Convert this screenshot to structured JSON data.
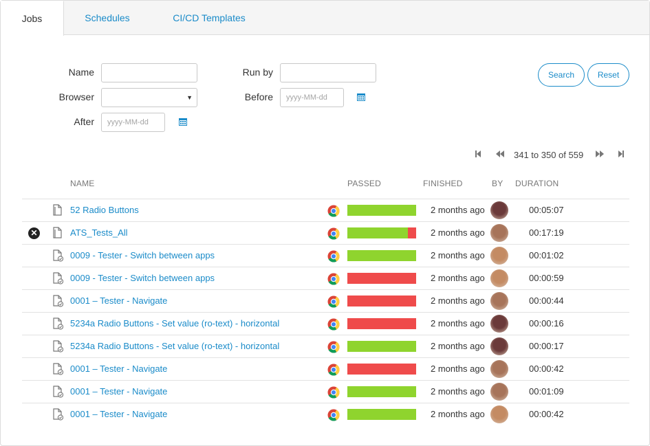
{
  "tabs": [
    {
      "label": "Jobs",
      "active": true
    },
    {
      "label": "Schedules",
      "active": false
    },
    {
      "label": "CI/CD Templates",
      "active": false
    }
  ],
  "filters": {
    "name_label": "Name",
    "name_value": "",
    "browser_label": "Browser",
    "browser_value": "",
    "after_label": "After",
    "after_placeholder": "yyyy-MM-dd",
    "runby_label": "Run by",
    "runby_value": "",
    "before_label": "Before",
    "before_placeholder": "yyyy-MM-dd"
  },
  "buttons": {
    "search": "Search",
    "reset": "Reset"
  },
  "pagination": {
    "range": "341 to 350 of 559"
  },
  "columns": {
    "name": "NAME",
    "passed": "PASSED",
    "finished": "FINISHED",
    "by": "BY",
    "duration": "DURATION"
  },
  "colors": {
    "accent": "#1a8bc9",
    "pass": "#8fd42e",
    "fail": "#ef4b4b"
  },
  "jobs": [
    {
      "name": "52 Radio Buttons",
      "status_icon": "",
      "doc_icon": "document-icon",
      "browser_icon": "chrome-icon",
      "passed_fraction": 1.0,
      "finished": "2 months ago",
      "duration": "00:05:07",
      "avatar_color": "#6b3a3a"
    },
    {
      "name": "ATS_Tests_All",
      "status_icon": "error-icon",
      "doc_icon": "document-icon",
      "browser_icon": "chrome-icon",
      "passed_fraction": 0.88,
      "finished": "2 months ago",
      "duration": "00:17:19",
      "avatar_color": "#a7745a"
    },
    {
      "name": "0009 - Tester - Switch between apps",
      "status_icon": "",
      "doc_icon": "document-check-icon",
      "browser_icon": "chrome-icon",
      "passed_fraction": 1.0,
      "finished": "2 months ago",
      "duration": "00:01:02",
      "avatar_color": "#c48b63"
    },
    {
      "name": "0009 - Tester - Switch between apps",
      "status_icon": "",
      "doc_icon": "document-check-icon",
      "browser_icon": "chrome-icon",
      "passed_fraction": 0.0,
      "finished": "2 months ago",
      "duration": "00:00:59",
      "avatar_color": "#c48b63"
    },
    {
      "name": "0001 – Tester - Navigate",
      "status_icon": "",
      "doc_icon": "document-check-icon",
      "browser_icon": "chrome-icon",
      "passed_fraction": 0.0,
      "finished": "2 months ago",
      "duration": "00:00:44",
      "avatar_color": "#a7745a"
    },
    {
      "name": "5234a Radio Buttons - Set value (ro-text) - horizontal",
      "status_icon": "",
      "doc_icon": "document-check-icon",
      "browser_icon": "chrome-icon",
      "passed_fraction": 0.0,
      "finished": "2 months ago",
      "duration": "00:00:16",
      "avatar_color": "#6b3a3a"
    },
    {
      "name": "5234a Radio Buttons - Set value (ro-text) - horizontal",
      "status_icon": "",
      "doc_icon": "document-check-icon",
      "browser_icon": "chrome-icon",
      "passed_fraction": 1.0,
      "finished": "2 months ago",
      "duration": "00:00:17",
      "avatar_color": "#6b3a3a"
    },
    {
      "name": "0001 – Tester - Navigate",
      "status_icon": "",
      "doc_icon": "document-check-icon",
      "browser_icon": "chrome-icon",
      "passed_fraction": 0.0,
      "finished": "2 months ago",
      "duration": "00:00:42",
      "avatar_color": "#a7745a"
    },
    {
      "name": "0001 – Tester - Navigate",
      "status_icon": "",
      "doc_icon": "document-check-icon",
      "browser_icon": "chrome-icon",
      "passed_fraction": 1.0,
      "finished": "2 months ago",
      "duration": "00:01:09",
      "avatar_color": "#a7745a"
    },
    {
      "name": "0001 – Tester - Navigate",
      "status_icon": "",
      "doc_icon": "document-check-icon",
      "browser_icon": "chrome-icon",
      "passed_fraction": 1.0,
      "finished": "2 months ago",
      "duration": "00:00:42",
      "avatar_color": "#c48b63"
    }
  ]
}
